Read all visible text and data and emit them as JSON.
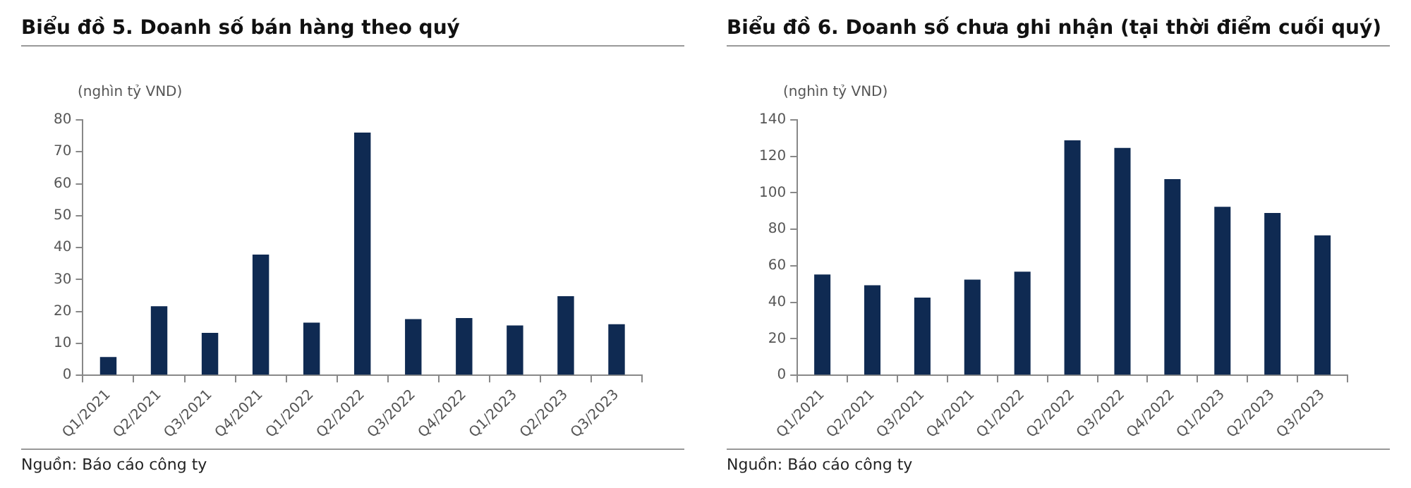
{
  "chart_data": [
    {
      "type": "bar",
      "title": "Biểu đồ 5. Doanh số bán hàng theo quý",
      "ylabel": "(nghìn tỷ VND)",
      "categories": [
        "Q1/2021",
        "Q2/2021",
        "Q3/2021",
        "Q4/2021",
        "Q1/2022",
        "Q2/2022",
        "Q3/2022",
        "Q4/2022",
        "Q1/2023",
        "Q2/2023",
        "Q3/2023"
      ],
      "values": [
        5.7,
        21.6,
        13.3,
        37.8,
        16.5,
        76,
        17.6,
        17.9,
        15.6,
        24.8,
        16
      ],
      "color": "#0f2a52",
      "ylim": [
        0,
        80
      ],
      "yticks": [
        0,
        10,
        20,
        30,
        40,
        50,
        60,
        70,
        80
      ],
      "grid": false,
      "legend": false,
      "annotations": [
        "Nguồn: Báo cáo công ty"
      ]
    },
    {
      "type": "bar",
      "title": "Biểu đồ 6. Doanh số chưa ghi nhận (tại thời điểm cuối quý)",
      "ylabel": "(nghìn tỷ VND)",
      "categories": [
        "Q1/2021",
        "Q2/2021",
        "Q3/2021",
        "Q4/2021",
        "Q1/2022",
        "Q2/2022",
        "Q3/2022",
        "Q4/2022",
        "Q1/2023",
        "Q2/2023",
        "Q3/2023"
      ],
      "values": [
        55.2,
        49.3,
        42.6,
        52.4,
        56.8,
        128.8,
        124.6,
        107.5,
        92.4,
        89,
        76.7
      ],
      "color": "#0f2a52",
      "ylim": [
        0,
        140
      ],
      "yticks": [
        0,
        20,
        40,
        60,
        80,
        100,
        120,
        140
      ],
      "grid": false,
      "legend": false,
      "annotations": [
        "Nguồn: Báo cáo công ty"
      ]
    }
  ]
}
